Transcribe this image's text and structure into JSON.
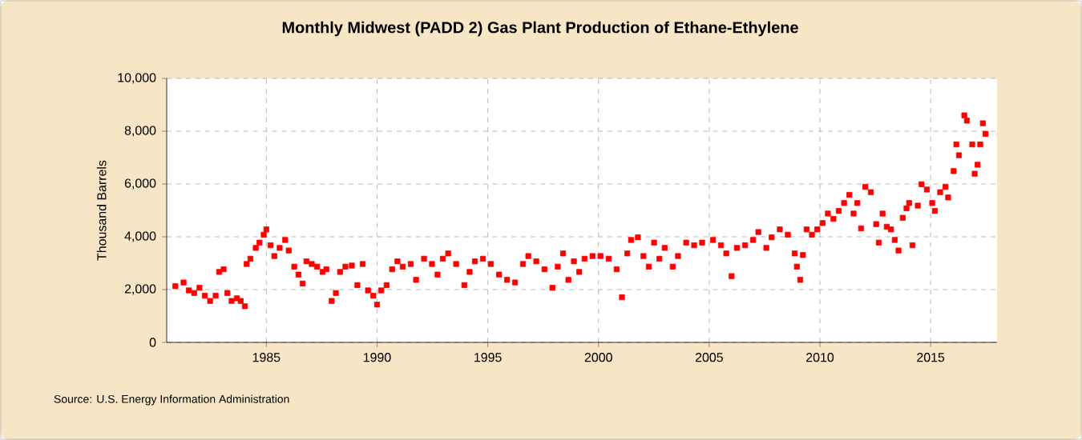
{
  "chart_data": {
    "type": "scatter",
    "title": "Monthly Midwest (PADD 2) Gas Plant Production of Ethane-Ethylene",
    "ylabel": "Thousand Barrels",
    "annotations": [
      "Source: U.S. Energy Information Administration"
    ],
    "xlim": [
      1980.5,
      2018
    ],
    "xticks": [
      1985,
      1990,
      1995,
      2000,
      2005,
      2010,
      2015
    ],
    "ylim": [
      0,
      10000
    ],
    "yticks": [
      0,
      {
        "value": 2000,
        "label": "2,000"
      },
      {
        "value": 4000,
        "label": "4,000"
      },
      {
        "value": 6000,
        "label": "6,000"
      },
      {
        "value": 8000,
        "label": "8,000"
      },
      {
        "value": 10000,
        "label": "10,000"
      }
    ],
    "grid": true,
    "marker": "square",
    "series": [
      {
        "color": "#ff0000",
        "x": [
          1980.89,
          1981.26,
          1981.5,
          1981.74,
          1981.98,
          1982.22,
          1982.46,
          1982.71,
          1982.87,
          1983.07,
          1983.24,
          1983.43,
          1983.67,
          1983.84,
          1984.03,
          1984.11,
          1984.28,
          1984.52,
          1984.69,
          1984.88,
          1985.0,
          1985.19,
          1985.36,
          1985.6,
          1985.85,
          1986.01,
          1986.26,
          1986.45,
          1986.64,
          1986.81,
          1987.05,
          1987.29,
          1987.54,
          1987.71,
          1987.95,
          1988.14,
          1988.33,
          1988.57,
          1988.86,
          1989.11,
          1989.35,
          1989.59,
          1989.83,
          1990.0,
          1990.19,
          1990.43,
          1990.68,
          1990.92,
          1991.16,
          1991.52,
          1991.76,
          1992.12,
          1992.48,
          1992.73,
          1992.97,
          1993.21,
          1993.57,
          1993.94,
          1994.18,
          1994.42,
          1994.78,
          1995.14,
          1995.51,
          1995.87,
          1996.23,
          1996.59,
          1996.83,
          1997.19,
          1997.56,
          1997.92,
          1998.16,
          1998.4,
          1998.64,
          1998.89,
          1999.13,
          1999.37,
          1999.73,
          2000.09,
          2000.46,
          2000.82,
          2001.06,
          2001.3,
          2001.47,
          2001.78,
          2002.03,
          2002.27,
          2002.51,
          2002.75,
          2002.99,
          2003.35,
          2003.59,
          2003.96,
          2004.32,
          2004.68,
          2005.17,
          2005.53,
          2005.77,
          2006.01,
          2006.25,
          2006.62,
          2006.98,
          2007.22,
          2007.58,
          2007.82,
          2008.19,
          2008.55,
          2008.86,
          2008.96,
          2009.11,
          2009.23,
          2009.4,
          2009.64,
          2009.88,
          2010.12,
          2010.36,
          2010.61,
          2010.85,
          2011.09,
          2011.33,
          2011.52,
          2011.69,
          2011.86,
          2012.05,
          2012.3,
          2012.54,
          2012.66,
          2012.83,
          2013.02,
          2013.21,
          2013.38,
          2013.55,
          2013.74,
          2013.91,
          2014.03,
          2014.18,
          2014.42,
          2014.59,
          2014.83,
          2015.07,
          2015.19,
          2015.43,
          2015.67,
          2015.79,
          2016.04,
          2016.16,
          2016.28,
          2016.52,
          2016.64,
          2016.88,
          2016.99,
          2017.12,
          2017.24,
          2017.36,
          2017.48
        ],
        "values": [
          2130,
          2270,
          1970,
          1870,
          2070,
          1770,
          1570,
          1770,
          2670,
          2770,
          1870,
          1570,
          1670,
          1570,
          1370,
          2970,
          3170,
          3580,
          3780,
          4080,
          4280,
          3680,
          3270,
          3580,
          3880,
          3480,
          2870,
          2570,
          2230,
          3070,
          2970,
          2870,
          2670,
          2770,
          1570,
          1870,
          2670,
          2870,
          2910,
          2170,
          2970,
          1970,
          1770,
          1430,
          1970,
          2170,
          2770,
          3070,
          2870,
          2970,
          2370,
          3170,
          2970,
          2570,
          3170,
          3370,
          2970,
          2170,
          2670,
          3070,
          3170,
          2970,
          2570,
          2370,
          2270,
          2970,
          3270,
          3070,
          2770,
          2070,
          2870,
          3370,
          2370,
          3070,
          2670,
          3170,
          3270,
          3270,
          3170,
          2770,
          1710,
          3370,
          3880,
          3980,
          3270,
          2870,
          3780,
          3170,
          3580,
          2870,
          3270,
          3780,
          3680,
          3780,
          3880,
          3680,
          3370,
          2510,
          3580,
          3680,
          3880,
          4180,
          3580,
          3980,
          4280,
          4080,
          3370,
          2870,
          2370,
          3310,
          4280,
          4080,
          4280,
          4520,
          4880,
          4680,
          4980,
          5280,
          5590,
          4880,
          5280,
          4320,
          5890,
          5690,
          4480,
          3780,
          4880,
          4380,
          4280,
          3880,
          3480,
          4720,
          5080,
          5280,
          3680,
          5180,
          5990,
          5790,
          5280,
          4980,
          5690,
          5890,
          5490,
          6490,
          7500,
          7090,
          8600,
          8400,
          7500,
          6390,
          6730,
          7500,
          8300,
          7900
        ]
      }
    ]
  }
}
